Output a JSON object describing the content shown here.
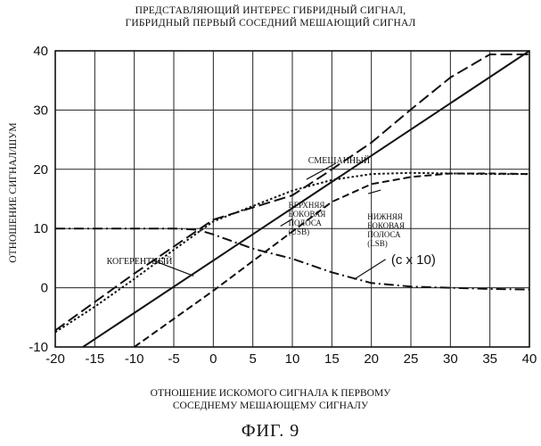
{
  "titles": {
    "line1": "ПРЕДСТАВЛЯЮЩИЙ ИНТЕРЕС ГИБРИДНЫЙ СИГНАЛ,",
    "line2": "ГИБРИДНЫЙ ПЕРВЫЙ СОСЕДНИЙ  МЕШАЮЩИЙ СИГНАЛ"
  },
  "xlabel": {
    "line1": "ОТНОШЕНИЕ ИСКОМОГО СИГНАЛА К ПЕРВОМУ",
    "line2": "СОСЕДНЕМУ МЕШАЮЩЕМУ СИГНАЛУ"
  },
  "ylabel": "ОТНОШЕНИЕ СИГНАЛ/ШУМ",
  "figure_label": "ФИГ. 9",
  "chart_data": {
    "type": "line",
    "xlim": [
      -20,
      40
    ],
    "ylim": [
      -10,
      40
    ],
    "xticks": [
      -20,
      -15,
      -10,
      -5,
      0,
      5,
      10,
      15,
      20,
      25,
      30,
      35,
      40
    ],
    "yticks": [
      -10,
      0,
      10,
      20,
      30,
      40
    ],
    "grid": true,
    "series": [
      {
        "name": "КОГЕРЕНТНЫЙ",
        "style": "solid",
        "x": [
          -16.5,
          40
        ],
        "y": [
          -10,
          40
        ]
      },
      {
        "name": "СМЕШАННЫЙ",
        "style": "long-dash",
        "x": [
          -20,
          -10,
          0,
          10,
          14,
          20,
          25,
          30,
          35,
          40
        ],
        "y": [
          -7.2,
          2.4,
          11.5,
          15.6,
          19.1,
          24.5,
          30.1,
          35.5,
          39.4,
          39.4
        ]
      },
      {
        "name": "ВЕРХНЯЯ БОКОВАЯ ПОЛОСА (USB)",
        "style": "short-dash",
        "x": [
          -10,
          0,
          5,
          10,
          15,
          20,
          25,
          30,
          35,
          40
        ],
        "y": [
          -10,
          -0.5,
          4.5,
          9.5,
          14.5,
          17.5,
          18.7,
          19.3,
          19.3,
          19.2
        ]
      },
      {
        "name": "НИЖНЯЯ БОКОВАЯ ПОЛОСА (LSB)",
        "style": "dotted",
        "x": [
          -20,
          -15,
          -10,
          -5,
          0,
          5,
          10,
          15,
          20,
          25,
          30,
          35,
          40
        ],
        "y": [
          -7.5,
          -3.2,
          1.5,
          6.4,
          11.2,
          13.8,
          16.4,
          18.2,
          19.2,
          19.4,
          19.3,
          19.2,
          19.2
        ]
      },
      {
        "name": "(с х 10)",
        "style": "dash-dot",
        "x": [
          -20,
          -10,
          -5,
          -2,
          0,
          5,
          10,
          15,
          20,
          25,
          30,
          35,
          40
        ],
        "y": [
          10,
          10,
          10,
          9.8,
          9.0,
          6.6,
          4.9,
          2.6,
          0.8,
          0.2,
          0,
          -0.2,
          -0.3
        ]
      }
    ],
    "annotations": [
      {
        "text": "СМЕШАННЫЙ",
        "x": 12,
        "y": 21
      },
      {
        "text": "КОГЕРЕНТНЫЙ",
        "x": -13.5,
        "y": 4
      },
      {
        "text": "ВЕРХНЯЯ БОКОВАЯ ПОЛОСА (USB)",
        "x": 9.5,
        "y": 13.5
      },
      {
        "text": "НИЖНЯЯ БОКОВАЯ ПОЛОСА (LSB)",
        "x": 19.5,
        "y": 11.5
      },
      {
        "text": "(с х 10)",
        "x": 22.5,
        "y": 4
      }
    ]
  }
}
